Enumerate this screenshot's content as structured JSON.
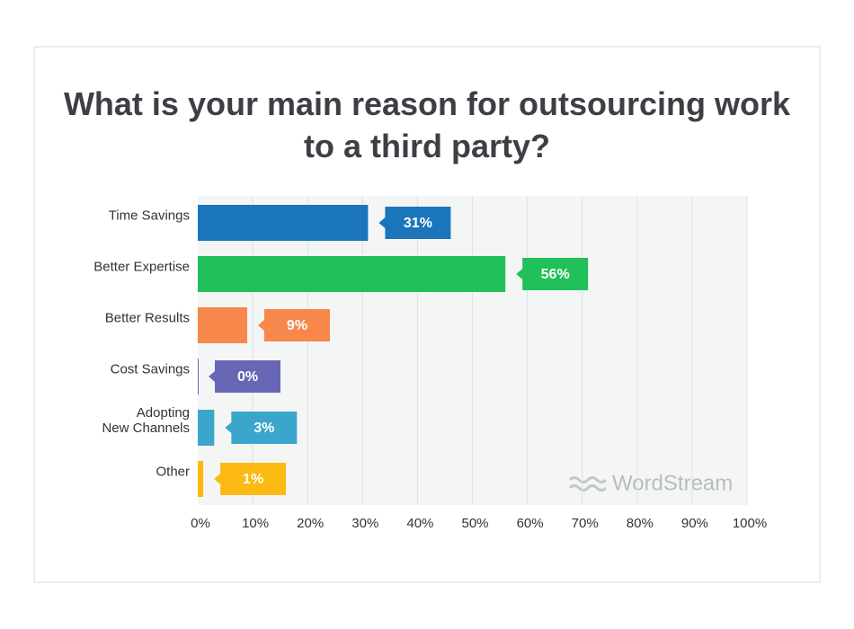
{
  "chart_data": {
    "type": "bar",
    "orientation": "horizontal",
    "title": "What is your main reason for outsourcing work to a third party?",
    "categories": [
      "Time Savings",
      "Better Expertise",
      "Better Results",
      "Cost Savings",
      "Adopting\nNew Channels",
      "Other"
    ],
    "values": [
      31,
      56,
      9,
      0,
      3,
      1
    ],
    "value_labels": [
      "31%",
      "56%",
      "9%",
      "0%",
      "3%",
      "1%"
    ],
    "colors": [
      "#1a75bb",
      "#22c05a",
      "#f7874a",
      "#6767b5",
      "#3aa6cc",
      "#fcb913"
    ],
    "xlim": [
      0,
      100
    ],
    "xticks": [
      {
        "value": 0,
        "label": "0%"
      },
      {
        "value": 10,
        "label": "10%"
      },
      {
        "value": 20,
        "label": "20%"
      },
      {
        "value": 30,
        "label": "30%"
      },
      {
        "value": 40,
        "label": "40%"
      },
      {
        "value": 50,
        "label": "50%"
      },
      {
        "value": 60,
        "label": "60%"
      },
      {
        "value": 70,
        "label": "70%"
      },
      {
        "value": 80,
        "label": "80%"
      },
      {
        "value": 90,
        "label": "90%"
      },
      {
        "value": 100,
        "label": "100%"
      }
    ],
    "grid": true,
    "watermark": "WordStream"
  }
}
